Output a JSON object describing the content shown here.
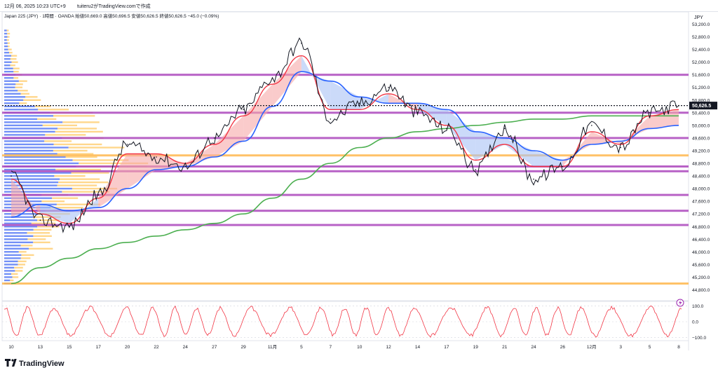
{
  "header": {
    "timestamp": "12月 06, 2025 10:23 UTC+9",
    "author": "tuiteru2がTradingView.comで作成"
  },
  "symbol_line": "Japan 225 (JPY) · 1時間 · OANDA  始値50,669.0  高値50,696.5  安値50,626.5  終値50,626.5  −45.0 (−0.09%)",
  "currency_label": "JPY",
  "brand": {
    "logo_text": "TradingView"
  },
  "price_axis": {
    "labels": [
      "53,200.0",
      "52,800.0",
      "52,400.0",
      "52,000.0",
      "51,600.0",
      "51,200.0",
      "50,800.0",
      "50,400.0",
      "50,000.0",
      "49,600.0",
      "49,200.0",
      "48,800.0",
      "48,400.0",
      "48,000.0",
      "47,600.0",
      "47,200.0",
      "46,800.0",
      "46,400.0",
      "46,000.0",
      "45,600.0",
      "45,200.0",
      "44,800.0"
    ],
    "last_price": "50,626.5"
  },
  "osc_axis": {
    "labels": [
      "100.0",
      "0.0",
      "−100.0"
    ]
  },
  "time_axis": {
    "labels": [
      "10",
      "13",
      "15",
      "17",
      "20",
      "22",
      "24",
      "27",
      "29",
      "11月",
      "5",
      "7",
      "10",
      "12",
      "14",
      "17",
      "19",
      "21",
      "24",
      "26",
      "12月",
      "3",
      "5",
      "8"
    ]
  },
  "colors": {
    "candle": "#131722",
    "fast_ma": "#f23645",
    "mid_ma": "#2962ff",
    "slow_ma": "#4caf50",
    "bull_cloud": "#f7a8a8",
    "bear_cloud": "#a9c1f5",
    "vp_blue": "#5b7cf5",
    "vp_yellow": "#ffca66",
    "hline_purple": "#ab47bc",
    "hline_yellow": "#ffb74d",
    "osc": "#f23645"
  },
  "chart_data": {
    "type": "line",
    "instrument": "Japan 225 (JPY)",
    "timeframe": "1時間",
    "ohlc_last": {
      "open": 50669.0,
      "high": 50696.5,
      "low": 50626.5,
      "close": 50626.5,
      "change": -45.0,
      "change_pct": -0.09
    },
    "x": [
      "10",
      "13",
      "15",
      "17",
      "20",
      "22",
      "24",
      "27",
      "29",
      "11月",
      "5",
      "7",
      "10",
      "12",
      "14",
      "17",
      "19",
      "21",
      "24",
      "26",
      "12月",
      "3",
      "5",
      "8"
    ],
    "series": [
      {
        "key": "price",
        "values": [
          48400,
          47000,
          46800,
          47800,
          49400,
          49000,
          48700,
          49600,
          50500,
          51500,
          52600,
          50200,
          50700,
          51200,
          50400,
          49900,
          48600,
          49900,
          48300,
          48700,
          50000,
          49300,
          50400,
          50626.5
        ]
      },
      {
        "key": "ma_fast",
        "values": [
          48300,
          47200,
          46900,
          47700,
          49100,
          49100,
          48800,
          49400,
          50300,
          51300,
          52200,
          50500,
          50500,
          51000,
          50500,
          50000,
          48900,
          49400,
          48700,
          48700,
          49800,
          49400,
          50300,
          50500
        ]
      },
      {
        "key": "ma_mid",
        "values": [
          47100,
          47500,
          47300,
          47400,
          48000,
          48600,
          48700,
          49000,
          49500,
          50600,
          51700,
          51400,
          50900,
          50700,
          50700,
          50500,
          49800,
          49600,
          49200,
          48900,
          49400,
          49500,
          49900,
          50000
        ]
      },
      {
        "key": "ma_slow",
        "values": [
          45000,
          45500,
          45800,
          46100,
          46300,
          46500,
          46700,
          46900,
          47200,
          47700,
          48300,
          48800,
          49300,
          49600,
          49800,
          49900,
          50000,
          50100,
          50200,
          50200,
          50300,
          50300,
          50300,
          50300
        ]
      }
    ],
    "horizontal_levels": [
      {
        "price": 51600,
        "color": "purple"
      },
      {
        "price": 50400,
        "color": "purple"
      },
      {
        "price": 49600,
        "color": "purple"
      },
      {
        "price": 49050,
        "color": "yellow"
      },
      {
        "price": 48700,
        "color": "purple"
      },
      {
        "price": 48550,
        "color": "purple"
      },
      {
        "price": 47800,
        "color": "purple"
      },
      {
        "price": 47300,
        "color": "purple"
      },
      {
        "price": 46850,
        "color": "purple"
      },
      {
        "price": 45000,
        "color": "yellow"
      }
    ],
    "volume_profile_peak_price": 48850,
    "ylim": [
      44700,
      53300
    ],
    "oscillator": {
      "ylim": [
        -110,
        110
      ],
      "levels": [
        100,
        0,
        -100
      ]
    },
    "grid": false,
    "legend": "none"
  }
}
